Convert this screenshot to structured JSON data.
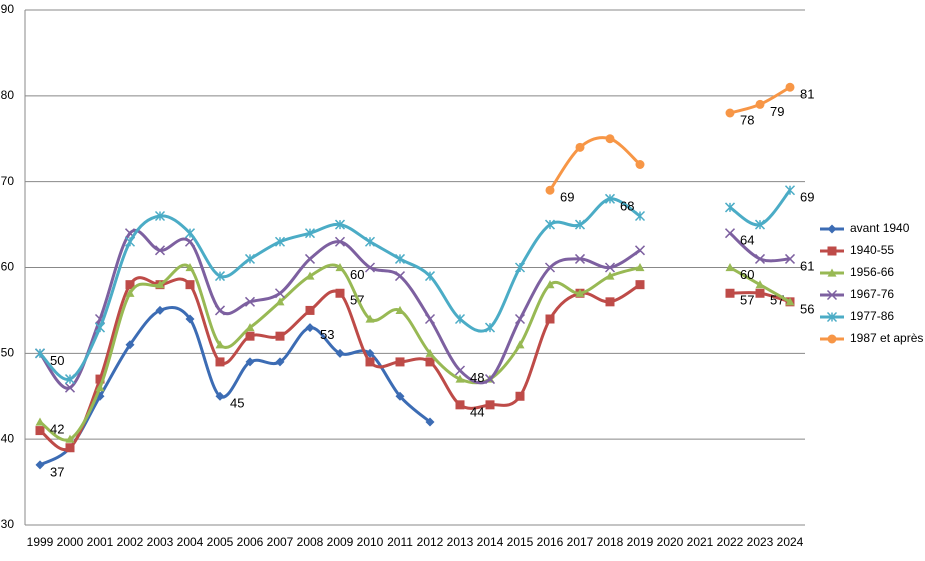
{
  "chart_data": {
    "type": "line",
    "categories": [
      "1999",
      "2000",
      "2001",
      "2002",
      "2003",
      "2004",
      "2005",
      "2006",
      "2007",
      "2008",
      "2009",
      "2010",
      "2011",
      "2012",
      "2013",
      "2014",
      "2015",
      "2016",
      "2017",
      "2018",
      "2019",
      "2020",
      "2021",
      "2022",
      "2023",
      "2024"
    ],
    "ylim": [
      30,
      90
    ],
    "yticks": [
      30,
      40,
      50,
      60,
      70,
      80,
      90
    ],
    "grid": true,
    "legend": "right",
    "series": [
      {
        "name": "avant 1940",
        "color": "#3c6cb4",
        "marker": "diamond",
        "values": [
          37,
          39,
          45,
          51,
          55,
          54,
          45,
          49,
          49,
          53,
          50,
          50,
          45,
          42,
          null,
          null,
          null,
          null,
          null,
          null,
          null,
          null,
          null,
          null,
          null,
          null
        ],
        "data_labels": [
          0,
          6,
          9
        ]
      },
      {
        "name": "1940-55",
        "color": "#be4b48",
        "marker": "square",
        "values": [
          41,
          39,
          47,
          58,
          58,
          58,
          49,
          52,
          52,
          55,
          57,
          49,
          49,
          49,
          44,
          44,
          45,
          54,
          57,
          56,
          58,
          null,
          null,
          57,
          57,
          56
        ],
        "data_labels": [
          10,
          14,
          23,
          24
        ]
      },
      {
        "name": "1956-66",
        "color": "#98b954",
        "marker": "triangle",
        "values": [
          42,
          40,
          46,
          57,
          58,
          60,
          51,
          53,
          56,
          59,
          60,
          54,
          55,
          50,
          47,
          47,
          51,
          58,
          57,
          59,
          60,
          null,
          null,
          60,
          58,
          56
        ],
        "data_labels": [
          0,
          10,
          23,
          25
        ]
      },
      {
        "name": "1967-76",
        "color": "#7d60a0",
        "marker": "x",
        "values": [
          50,
          46,
          54,
          64,
          62,
          63,
          55,
          56,
          57,
          61,
          63,
          60,
          59,
          54,
          48,
          47,
          54,
          60,
          61,
          60,
          62,
          null,
          null,
          64,
          61,
          61
        ],
        "data_labels": [
          14,
          23,
          25
        ]
      },
      {
        "name": "1977-86",
        "color": "#4bacc6",
        "marker": "star",
        "values": [
          50,
          47,
          53,
          63,
          66,
          64,
          59,
          61,
          63,
          64,
          65,
          63,
          61,
          59,
          54,
          53,
          60,
          65,
          65,
          68,
          66,
          null,
          null,
          67,
          65,
          69
        ],
        "data_labels": [
          0,
          19,
          25
        ]
      },
      {
        "name": "1987 et après",
        "color": "#f79646",
        "marker": "circle",
        "values": [
          null,
          null,
          null,
          null,
          null,
          null,
          null,
          null,
          null,
          null,
          null,
          null,
          null,
          null,
          null,
          null,
          null,
          69,
          74,
          75,
          72,
          null,
          null,
          78,
          79,
          81
        ],
        "data_labels": [
          17,
          23,
          24,
          25
        ]
      }
    ]
  }
}
